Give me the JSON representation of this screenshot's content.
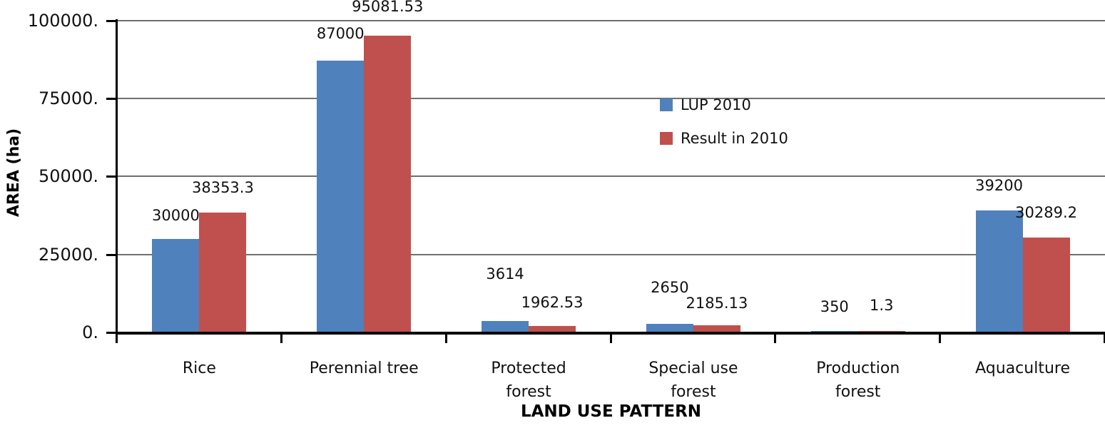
{
  "chart_data": {
    "type": "bar",
    "title": "",
    "xlabel": "LAND USE PATTERN",
    "ylabel": "AREA (ha)",
    "categories": [
      "Rice",
      "Perennial tree",
      "Protected forest",
      "Special use forest",
      "Production forest",
      "Aquaculture"
    ],
    "category_display_labels": [
      "Rice",
      "Perennial tree",
      "Protected\nforest",
      "Special use\nforest",
      "Production\nforest",
      "Aquaculture"
    ],
    "series": [
      {
        "name": "LUP 2010",
        "color": "#4F81BD",
        "values": [
          30000,
          87000,
          3614,
          2650,
          350,
          39200
        ],
        "value_labels": [
          "30000",
          "87000",
          "3614",
          "2650",
          "350",
          "39200"
        ]
      },
      {
        "name": "Result in 2010",
        "color": "#C0504D",
        "values": [
          38353.3,
          95081.53,
          1962.53,
          2185.13,
          1.3,
          30289.2
        ],
        "value_labels": [
          "38353.3",
          "95081.53",
          "1962.53",
          "2185.13",
          "1.3",
          "30289.2"
        ]
      }
    ],
    "ylim": [
      0,
      100000
    ],
    "yticks": [
      0,
      25000,
      50000,
      75000,
      100000
    ],
    "ytick_labels": [
      "0.",
      "25000.",
      "50000.",
      "75000.",
      "100000."
    ],
    "grid": true,
    "legend_position": "inside-right",
    "colors": {
      "axis": "#000000",
      "gridline": "#6f6f6f",
      "text": "#111111"
    }
  }
}
